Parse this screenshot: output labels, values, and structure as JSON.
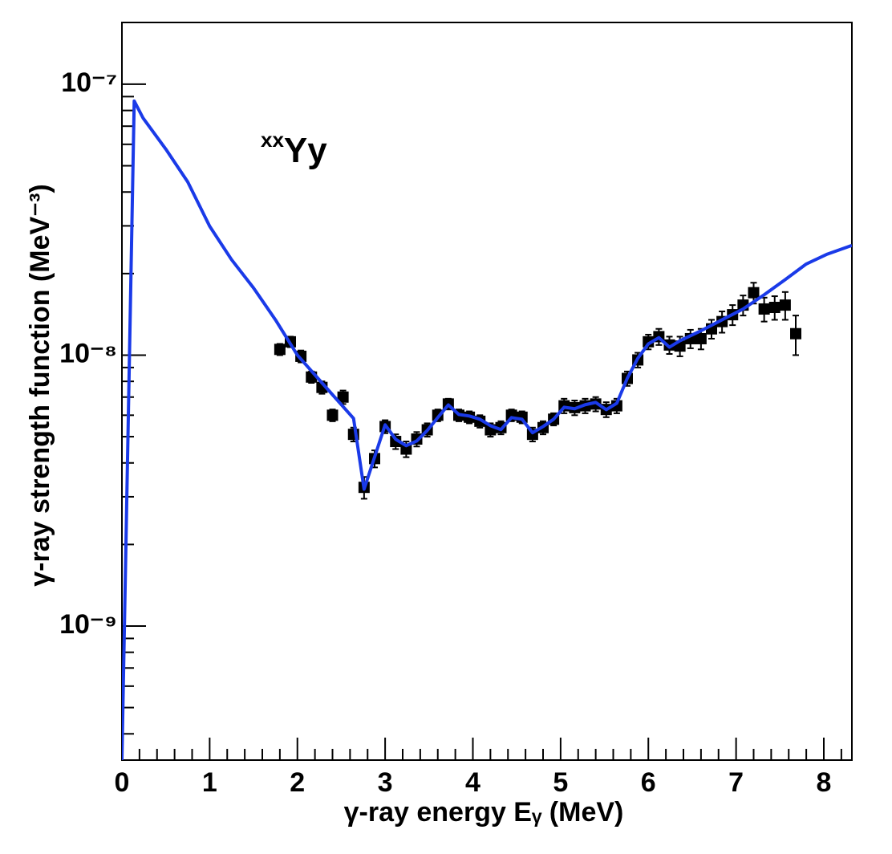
{
  "chart_data": {
    "type": "scatter",
    "annotation": {
      "superscript": "xx",
      "text": "Yy"
    },
    "xlabel": "γ-ray energy Eᵧ (MeV)",
    "ylabel": "γ-ray strength function (MeV⁻³)",
    "xlim": [
      0,
      8.32
    ],
    "ylim": [
      3.2e-10,
      1.69e-07
    ],
    "xticks": [
      0,
      1,
      2,
      3,
      4,
      5,
      6,
      7,
      8
    ],
    "yticks": [
      {
        "value": 1e-09,
        "label": "10⁻⁹"
      },
      {
        "value": 1e-08,
        "label": "10⁻⁸"
      },
      {
        "value": 1e-07,
        "label": "10⁻⁷"
      }
    ],
    "log_y": true,
    "series": [
      {
        "style": "markers",
        "color": "#000000",
        "x": [
          1.8,
          1.92,
          2.04,
          2.16,
          2.28,
          2.4,
          2.52,
          2.64,
          2.76,
          2.88,
          3.0,
          3.12,
          3.24,
          3.36,
          3.48,
          3.6,
          3.72,
          3.84,
          3.96,
          4.08,
          4.2,
          4.32,
          4.44,
          4.56,
          4.68,
          4.8,
          4.92,
          5.04,
          5.16,
          5.28,
          5.4,
          5.52,
          5.64,
          5.76,
          5.88,
          6.0,
          6.12,
          6.24,
          6.36,
          6.48,
          6.6,
          6.72,
          6.84,
          6.96,
          7.08,
          7.2,
          7.32,
          7.44,
          7.56,
          7.68
        ],
        "values": [
          1.05e-08,
          1.12e-08,
          9.9e-09,
          8.3e-09,
          7.6e-09,
          6e-09,
          7e-09,
          5.1e-09,
          3.25e-09,
          4.15e-09,
          5.45e-09,
          4.8e-09,
          4.5e-09,
          4.9e-09,
          5.3e-09,
          6e-09,
          6.6e-09,
          6e-09,
          5.9e-09,
          5.7e-09,
          5.3e-09,
          5.4e-09,
          6e-09,
          5.9e-09,
          5.1e-09,
          5.4e-09,
          5.8e-09,
          6.5e-09,
          6.4e-09,
          6.5e-09,
          6.6e-09,
          6.3e-09,
          6.5e-09,
          8.2e-09,
          9.6e-09,
          1.12e-08,
          1.17e-08,
          1.09e-08,
          1.08e-08,
          1.15e-08,
          1.15e-08,
          1.25e-08,
          1.33e-08,
          1.41e-08,
          1.53e-08,
          1.7e-08,
          1.48e-08,
          1.5e-08,
          1.53e-08,
          1.2e-08
        ],
        "errors": [
          5e-10,
          5e-10,
          5e-10,
          4e-10,
          4e-10,
          3e-10,
          4e-10,
          3e-10,
          3e-10,
          3e-10,
          3e-10,
          3e-10,
          3e-10,
          3e-10,
          3e-10,
          3e-10,
          3e-10,
          3e-10,
          3e-10,
          3e-10,
          3e-10,
          3e-10,
          3e-10,
          3e-10,
          3e-10,
          3e-10,
          3e-10,
          4e-10,
          4e-10,
          4e-10,
          4e-10,
          4e-10,
          4e-10,
          5e-10,
          6e-10,
          7e-10,
          8e-10,
          8e-10,
          9e-10,
          9e-10,
          1e-09,
          1e-09,
          1.2e-09,
          1.2e-09,
          1.3e-09,
          1.5e-09,
          1.5e-09,
          1.5e-09,
          1.8e-09,
          2e-09
        ]
      },
      {
        "style": "line",
        "color": "#1a3ae8",
        "x": [
          0,
          0.14,
          0.24,
          0.5,
          0.75,
          1.0,
          1.25,
          1.5,
          1.75,
          2.0,
          2.28,
          2.64,
          2.76,
          3.0,
          3.12,
          3.24,
          3.36,
          3.48,
          3.6,
          3.72,
          3.84,
          3.96,
          4.08,
          4.2,
          4.32,
          4.44,
          4.56,
          4.68,
          4.8,
          4.92,
          5.04,
          5.16,
          5.28,
          5.4,
          5.52,
          5.64,
          5.76,
          5.88,
          6.0,
          6.12,
          6.24,
          6.36,
          6.6,
          6.84,
          7.08,
          7.32,
          7.56,
          7.8,
          8.04,
          8.32
        ],
        "values": [
          3.2e-10,
          8.67e-08,
          7.51e-08,
          5.76e-08,
          4.36e-08,
          2.99e-08,
          2.25e-08,
          1.77e-08,
          1.35e-08,
          1e-08,
          7.9e-09,
          5.84e-09,
          3.2e-09,
          5.53e-09,
          4.89e-09,
          4.63e-09,
          4.82e-09,
          5.27e-09,
          5.88e-09,
          6.55e-09,
          6.04e-09,
          5.96e-09,
          5.8e-09,
          5.49e-09,
          5.31e-09,
          5.88e-09,
          5.8e-09,
          5.17e-09,
          5.45e-09,
          5.8e-09,
          6.42e-09,
          6.34e-09,
          6.56e-09,
          6.69e-09,
          6.29e-09,
          6.64e-09,
          8.21e-09,
          9.73e-09,
          1.1e-08,
          1.16e-08,
          1.07e-08,
          1.13e-08,
          1.23e-08,
          1.35e-08,
          1.48e-08,
          1.67e-08,
          1.9e-08,
          2.17e-08,
          2.36e-08,
          2.54e-08
        ]
      }
    ]
  }
}
